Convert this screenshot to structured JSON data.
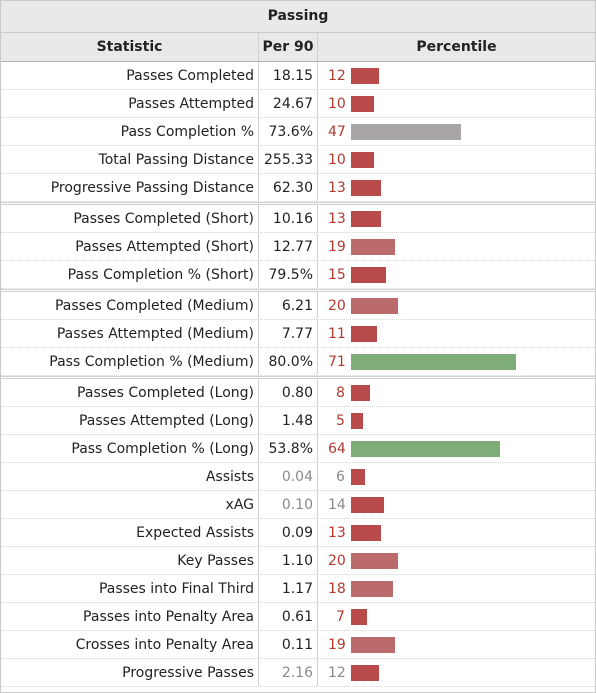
{
  "title": "Passing",
  "headers": {
    "statistic": "Statistic",
    "per90": "Per 90",
    "percentile": "Percentile"
  },
  "colors": {
    "low": "#b94a4a",
    "lowlight": "#bb6b6b",
    "mid": "#a9a5a6",
    "high": "#7fad7a"
  },
  "rows": [
    {
      "stat": "Passes Completed",
      "per90": "18.15",
      "pct": "12",
      "tier": "low"
    },
    {
      "stat": "Passes Attempted",
      "per90": "24.67",
      "pct": "10",
      "tier": "low"
    },
    {
      "stat": "Pass Completion %",
      "per90": "73.6%",
      "pct": "47",
      "tier": "mid"
    },
    {
      "stat": "Total Passing Distance",
      "per90": "255.33",
      "pct": "10",
      "tier": "low"
    },
    {
      "stat": "Progressive Passing Distance",
      "per90": "62.30",
      "pct": "13",
      "tier": "low"
    },
    {
      "stat": "Passes Completed (Short)",
      "per90": "10.16",
      "pct": "13",
      "tier": "low",
      "gap": true
    },
    {
      "stat": "Passes Attempted (Short)",
      "per90": "12.77",
      "pct": "19",
      "tier": "lowlight"
    },
    {
      "stat": "Pass Completion % (Short)",
      "per90": "79.5%",
      "pct": "15",
      "tier": "low"
    },
    {
      "stat": "Passes Completed (Medium)",
      "per90": "6.21",
      "pct": "20",
      "tier": "lowlight",
      "gap": true
    },
    {
      "stat": "Passes Attempted (Medium)",
      "per90": "7.77",
      "pct": "11",
      "tier": "low"
    },
    {
      "stat": "Pass Completion % (Medium)",
      "per90": "80.0%",
      "pct": "71",
      "tier": "high"
    },
    {
      "stat": "Passes Completed (Long)",
      "per90": "0.80",
      "pct": "8",
      "tier": "low",
      "gap": true
    },
    {
      "stat": "Passes Attempted (Long)",
      "per90": "1.48",
      "pct": "5",
      "tier": "low"
    },
    {
      "stat": "Pass Completion % (Long)",
      "per90": "53.8%",
      "pct": "64",
      "tier": "high"
    },
    {
      "stat": "Assists",
      "per90": "0.04",
      "pct": "6",
      "tier": "low",
      "dim": true
    },
    {
      "stat": "xAG",
      "per90": "0.10",
      "pct": "14",
      "tier": "low",
      "dim": true
    },
    {
      "stat": "Expected Assists",
      "per90": "0.09",
      "pct": "13",
      "tier": "low"
    },
    {
      "stat": "Key Passes",
      "per90": "1.10",
      "pct": "20",
      "tier": "lowlight"
    },
    {
      "stat": "Passes into Final Third",
      "per90": "1.17",
      "pct": "18",
      "tier": "lowlight"
    },
    {
      "stat": "Passes into Penalty Area",
      "per90": "0.61",
      "pct": "7",
      "tier": "low"
    },
    {
      "stat": "Crosses into Penalty Area",
      "per90": "0.11",
      "pct": "19",
      "tier": "lowlight"
    },
    {
      "stat": "Progressive Passes",
      "per90": "2.16",
      "pct": "12",
      "tier": "low",
      "dim": true
    }
  ]
}
